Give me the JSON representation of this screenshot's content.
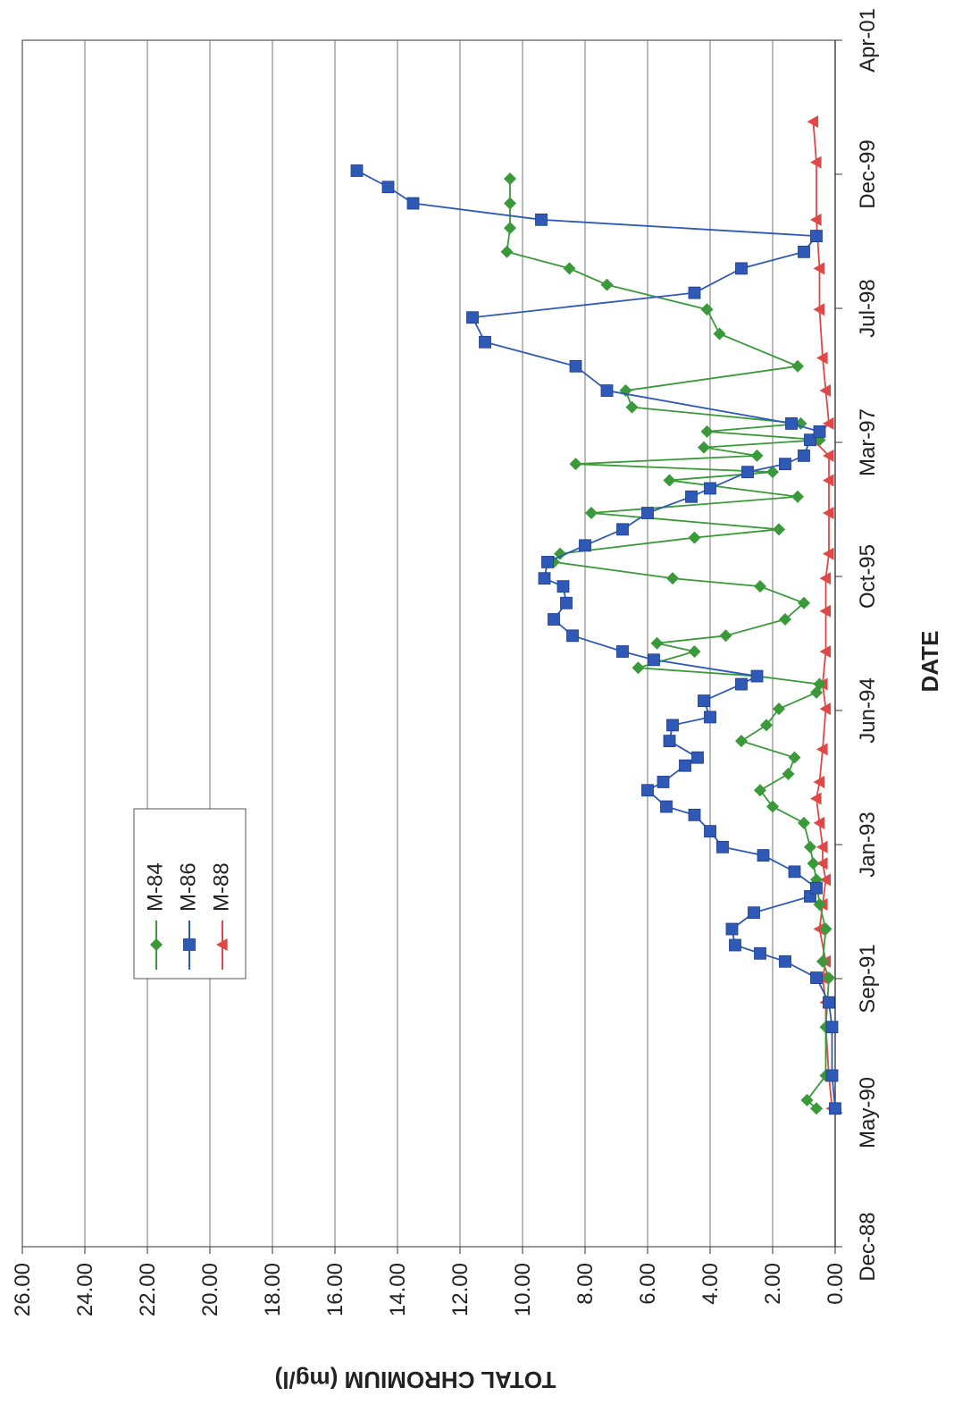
{
  "chart_data": {
    "type": "line",
    "title": "",
    "xlabel": "DATE",
    "ylabel": "TOTAL CHROMIUM (mg/l)",
    "xlim": [
      "1988-12-01",
      "2001-04-01"
    ],
    "ylim": [
      0,
      26
    ],
    "x_ticks": [
      "Dec-88",
      "May-90",
      "Sep-91",
      "Jan-93",
      "Jun-94",
      "Oct-95",
      "Mar-97",
      "Jul-98",
      "Dec-99",
      "Apr-01"
    ],
    "y_ticks": [
      "0.00",
      "2.00",
      "4.00",
      "6.00",
      "8.00",
      "10.00",
      "12.00",
      "14.00",
      "16.00",
      "18.00",
      "20.00",
      "22.00",
      "24.00",
      "26.00"
    ],
    "grid": true,
    "legend_position": "upper-left",
    "series": [
      {
        "name": "M-84",
        "color": "#3a9a3a",
        "marker": "diamond",
        "points": [
          [
            "1990-05-01",
            0.6
          ],
          [
            "1990-06-01",
            0.9
          ],
          [
            "1990-09-01",
            0.3
          ],
          [
            "1991-03-01",
            0.3
          ],
          [
            "1991-09-01",
            0.2
          ],
          [
            "1991-11-01",
            0.4
          ],
          [
            "1992-03-01",
            0.3
          ],
          [
            "1992-06-01",
            0.5
          ],
          [
            "1992-09-01",
            0.6
          ],
          [
            "1992-11-01",
            0.7
          ],
          [
            "1993-01-01",
            0.8
          ],
          [
            "1993-04-01",
            1.0
          ],
          [
            "1993-06-01",
            2.0
          ],
          [
            "1993-08-01",
            2.4
          ],
          [
            "1993-10-01",
            1.5
          ],
          [
            "1993-12-01",
            1.3
          ],
          [
            "1994-02-01",
            3.0
          ],
          [
            "1994-04-01",
            2.2
          ],
          [
            "1994-06-01",
            1.8
          ],
          [
            "1994-08-01",
            0.6
          ],
          [
            "1994-09-01",
            0.5
          ],
          [
            "1994-10-01",
            2.5
          ],
          [
            "1994-11-01",
            6.3
          ],
          [
            "1995-01-01",
            4.5
          ],
          [
            "1995-02-01",
            5.7
          ],
          [
            "1995-03-01",
            3.5
          ],
          [
            "1995-05-01",
            1.6
          ],
          [
            "1995-07-01",
            1.0
          ],
          [
            "1995-09-01",
            2.4
          ],
          [
            "1995-10-01",
            5.2
          ],
          [
            "1995-12-01",
            9.0
          ],
          [
            "1996-01-01",
            8.8
          ],
          [
            "1996-03-01",
            4.5
          ],
          [
            "1996-04-01",
            1.8
          ],
          [
            "1996-06-01",
            7.8
          ],
          [
            "1996-08-01",
            1.2
          ],
          [
            "1996-10-01",
            5.3
          ],
          [
            "1996-11-01",
            2.0
          ],
          [
            "1996-12-01",
            8.3
          ],
          [
            "1997-01-01",
            2.5
          ],
          [
            "1997-02-01",
            4.2
          ],
          [
            "1997-03-01",
            0.5
          ],
          [
            "1997-04-01",
            4.1
          ],
          [
            "1997-05-01",
            1.1
          ],
          [
            "1997-07-01",
            6.5
          ],
          [
            "1997-09-01",
            6.7
          ],
          [
            "1997-12-01",
            1.2
          ],
          [
            "1998-04-01",
            3.7
          ],
          [
            "1998-07-01",
            4.1
          ],
          [
            "1998-10-01",
            7.3
          ],
          [
            "1998-12-01",
            8.5
          ],
          [
            "1999-02-01",
            10.5
          ],
          [
            "1999-05-01",
            10.4
          ],
          [
            "1999-08-01",
            10.4
          ],
          [
            "1999-11-01",
            10.4
          ]
        ]
      },
      {
        "name": "M-86",
        "color": "#2f59b7",
        "marker": "square",
        "points": [
          [
            "1990-05-01",
            0.0
          ],
          [
            "1990-09-01",
            0.1
          ],
          [
            "1991-03-01",
            0.1
          ],
          [
            "1991-06-01",
            0.2
          ],
          [
            "1991-09-01",
            0.6
          ],
          [
            "1991-11-01",
            1.6
          ],
          [
            "1991-12-01",
            2.4
          ],
          [
            "1992-01-01",
            3.2
          ],
          [
            "1992-03-01",
            3.3
          ],
          [
            "1992-05-01",
            2.6
          ],
          [
            "1992-07-01",
            0.8
          ],
          [
            "1992-08-01",
            0.6
          ],
          [
            "1992-10-01",
            1.3
          ],
          [
            "1992-12-01",
            2.3
          ],
          [
            "1993-01-01",
            3.6
          ],
          [
            "1993-03-01",
            4.0
          ],
          [
            "1993-05-01",
            4.5
          ],
          [
            "1993-06-01",
            5.4
          ],
          [
            "1993-08-01",
            6.0
          ],
          [
            "1993-09-01",
            5.5
          ],
          [
            "1993-11-01",
            4.8
          ],
          [
            "1993-12-01",
            4.4
          ],
          [
            "1994-02-01",
            5.3
          ],
          [
            "1994-04-01",
            5.2
          ],
          [
            "1994-05-01",
            4.0
          ],
          [
            "1994-07-01",
            4.2
          ],
          [
            "1994-09-01",
            3.0
          ],
          [
            "1994-10-01",
            2.5
          ],
          [
            "1994-12-01",
            5.8
          ],
          [
            "1995-01-01",
            6.8
          ],
          [
            "1995-03-01",
            8.4
          ],
          [
            "1995-05-01",
            9.0
          ],
          [
            "1995-07-01",
            8.6
          ],
          [
            "1995-09-01",
            8.7
          ],
          [
            "1995-10-01",
            9.3
          ],
          [
            "1995-12-01",
            9.2
          ],
          [
            "1996-02-01",
            8.0
          ],
          [
            "1996-04-01",
            6.8
          ],
          [
            "1996-06-01",
            6.0
          ],
          [
            "1996-08-01",
            4.6
          ],
          [
            "1996-09-01",
            4.0
          ],
          [
            "1996-11-01",
            2.8
          ],
          [
            "1996-12-01",
            1.6
          ],
          [
            "1997-01-01",
            1.0
          ],
          [
            "1997-03-01",
            0.8
          ],
          [
            "1997-04-01",
            0.5
          ],
          [
            "1997-05-01",
            1.4
          ],
          [
            "1997-09-01",
            7.3
          ],
          [
            "1997-12-01",
            8.3
          ],
          [
            "1998-03-01",
            11.2
          ],
          [
            "1998-06-01",
            11.6
          ],
          [
            "1998-09-01",
            4.5
          ],
          [
            "1998-12-01",
            3.0
          ],
          [
            "1999-02-01",
            1.0
          ],
          [
            "1999-04-01",
            0.6
          ],
          [
            "1999-06-01",
            9.4
          ],
          [
            "1999-08-01",
            13.5
          ],
          [
            "1999-10-01",
            14.3
          ],
          [
            "1999-12-01",
            15.3
          ]
        ]
      },
      {
        "name": "M-88",
        "color": "#e04848",
        "marker": "triangle",
        "points": [
          [
            "1990-05-01",
            0.1
          ],
          [
            "1990-09-01",
            0.2
          ],
          [
            "1991-03-01",
            0.3
          ],
          [
            "1991-06-01",
            0.3
          ],
          [
            "1991-09-01",
            0.4
          ],
          [
            "1991-11-01",
            0.3
          ],
          [
            "1992-03-01",
            0.5
          ],
          [
            "1992-06-01",
            0.4
          ],
          [
            "1992-09-01",
            0.3
          ],
          [
            "1992-11-01",
            0.4
          ],
          [
            "1993-01-01",
            0.4
          ],
          [
            "1993-04-01",
            0.5
          ],
          [
            "1993-07-01",
            0.6
          ],
          [
            "1993-09-01",
            0.5
          ],
          [
            "1994-01-01",
            0.4
          ],
          [
            "1994-06-01",
            0.3
          ],
          [
            "1994-09-01",
            0.4
          ],
          [
            "1995-01-01",
            0.3
          ],
          [
            "1995-06-01",
            0.3
          ],
          [
            "1995-10-01",
            0.3
          ],
          [
            "1996-01-01",
            0.2
          ],
          [
            "1996-06-01",
            0.2
          ],
          [
            "1996-10-01",
            0.2
          ],
          [
            "1997-01-01",
            0.2
          ],
          [
            "1997-03-01",
            0.7
          ],
          [
            "1997-05-01",
            0.2
          ],
          [
            "1997-09-01",
            0.3
          ],
          [
            "1998-01-01",
            0.4
          ],
          [
            "1998-07-01",
            0.5
          ],
          [
            "1998-12-01",
            0.5
          ],
          [
            "1999-06-01",
            0.6
          ],
          [
            "2000-01-01",
            0.6
          ],
          [
            "2000-06-01",
            0.7
          ]
        ]
      }
    ]
  }
}
